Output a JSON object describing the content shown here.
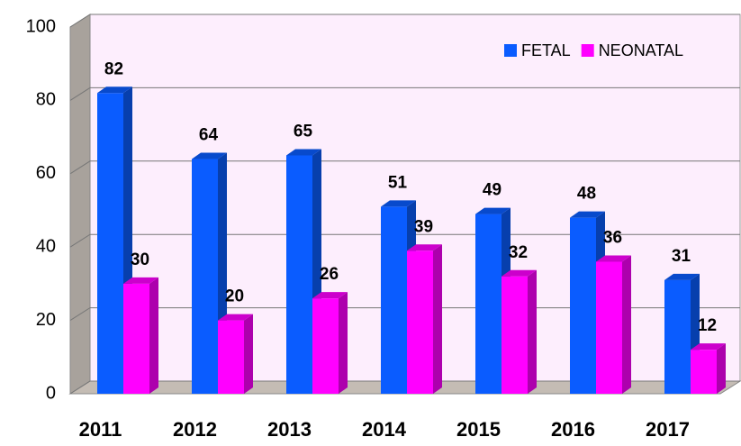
{
  "chart_data": {
    "type": "bar3d",
    "categories": [
      "2011",
      "2012",
      "2013",
      "2014",
      "2015",
      "2016",
      "2017"
    ],
    "series": [
      {
        "name": "FETAL",
        "color": "#0a5cff",
        "values": [
          82,
          64,
          65,
          51,
          49,
          48,
          31
        ]
      },
      {
        "name": "NEONATAL",
        "color": "#ff00ff",
        "values": [
          30,
          20,
          26,
          39,
          32,
          36,
          12
        ]
      }
    ],
    "ylim": [
      0,
      100
    ],
    "yticks": [
      0,
      20,
      40,
      60,
      80,
      100
    ],
    "grid": true,
    "legend": "top-right"
  }
}
